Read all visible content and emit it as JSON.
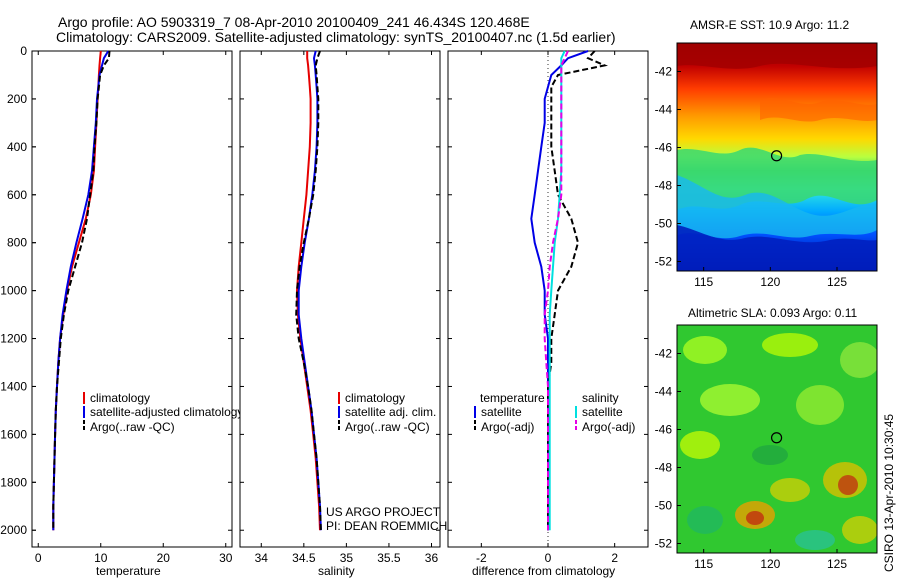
{
  "header": {
    "title_line1": "Argo profile: AO 5903319_7 08-Apr-2010 20100409_241 46.434S 120.468E",
    "title_line2": "Climatology: CARS2009. Satellite-adjusted climatology: synTS_20100407.nc (1.5d earlier)"
  },
  "credits": {
    "project": "US ARGO PROJECT",
    "pi": "PI: DEAN ROEMMICH",
    "stamp": "CSIRO 13-Apr-2010 10:30:45"
  },
  "colors": {
    "climatology": "#e60000",
    "satellite": "#0000e6",
    "argo": "#000000",
    "salinity_sat": "#00e0e0",
    "salinity_argo": "#e600e6"
  },
  "chart_data": [
    {
      "type": "line",
      "id": "temperature",
      "xlabel": "temperature",
      "xlim": [
        -1,
        31
      ],
      "ylim": [
        2070,
        0
      ],
      "yticks": [
        0,
        200,
        400,
        600,
        800,
        1000,
        1200,
        1400,
        1600,
        1800,
        2000
      ],
      "xticks": [
        0,
        10,
        20,
        30
      ],
      "xtick_labels": [
        "0",
        "10",
        "20",
        "30"
      ],
      "ytick_labels": [
        "0",
        "200",
        "400",
        "600",
        "800",
        "1000",
        "1200",
        "1400",
        "1600",
        "1800",
        "2000"
      ],
      "legend": [
        "climatology",
        "satellite-adjusted climatology",
        "Argo(..raw -QC)"
      ],
      "depth": [
        0,
        30,
        60,
        100,
        150,
        200,
        300,
        400,
        500,
        600,
        700,
        800,
        900,
        1000,
        1100,
        1200,
        1300,
        1400,
        1500,
        1600,
        1700,
        1800,
        1900,
        2000
      ],
      "series": [
        {
          "name": "climatology",
          "style": "solid",
          "values": [
            10.0,
            9.9,
            9.8,
            9.7,
            9.6,
            9.5,
            9.3,
            9.1,
            8.9,
            8.4,
            7.6,
            6.5,
            5.4,
            4.6,
            4.0,
            3.5,
            3.2,
            3.0,
            2.8,
            2.7,
            2.6,
            2.5,
            2.4,
            2.4
          ]
        },
        {
          "name": "satellite-adjusted climatology",
          "style": "solid",
          "values": [
            11.2,
            10.5,
            10.2,
            9.8,
            9.6,
            9.4,
            9.2,
            8.9,
            8.6,
            8.0,
            7.1,
            6.1,
            5.2,
            4.5,
            3.9,
            3.5,
            3.2,
            3.0,
            2.8,
            2.7,
            2.6,
            2.5,
            2.4,
            2.4
          ]
        },
        {
          "name": "Argo(..raw -QC)",
          "style": "dashed",
          "values": [
            11.4,
            11.3,
            10.5,
            9.9,
            9.7,
            9.5,
            9.3,
            9.0,
            8.8,
            8.3,
            7.8,
            7.0,
            5.9,
            4.8,
            4.1,
            3.6,
            3.3,
            3.0,
            2.8,
            2.7,
            2.6,
            2.5,
            2.4,
            2.4
          ]
        }
      ]
    },
    {
      "type": "line",
      "id": "salinity",
      "xlabel": "salinity",
      "xlim": [
        33.75,
        36.1
      ],
      "ylim": [
        2070,
        0
      ],
      "xticks": [
        34,
        34.5,
        35,
        35.5,
        36
      ],
      "xtick_labels": [
        "34",
        "34.5",
        "35",
        "35.5",
        "36"
      ],
      "legend": [
        "climatology",
        "satellite adj. clim.",
        "Argo(..raw -QC)"
      ],
      "depth": [
        0,
        30,
        60,
        100,
        150,
        200,
        300,
        400,
        500,
        600,
        700,
        800,
        900,
        1000,
        1100,
        1200,
        1300,
        1400,
        1500,
        1600,
        1700,
        1800,
        1900,
        2000
      ],
      "series": [
        {
          "name": "climatology",
          "style": "solid",
          "values": [
            34.54,
            34.54,
            34.55,
            34.56,
            34.57,
            34.58,
            34.58,
            34.57,
            34.55,
            34.53,
            34.5,
            34.47,
            34.44,
            34.42,
            34.43,
            34.46,
            34.5,
            34.54,
            34.58,
            34.61,
            34.64,
            34.66,
            34.68,
            34.69
          ]
        },
        {
          "name": "satellite adj. clim.",
          "style": "solid",
          "values": [
            34.64,
            34.62,
            34.63,
            34.64,
            34.65,
            34.66,
            34.66,
            34.65,
            34.63,
            34.6,
            34.56,
            34.51,
            34.47,
            34.44,
            34.44,
            34.47,
            34.51,
            34.55,
            34.59,
            34.62,
            34.65,
            34.67,
            34.69,
            34.7
          ]
        },
        {
          "name": "Argo(..raw -QC)",
          "style": "dashed",
          "values": [
            34.69,
            34.66,
            34.64,
            34.65,
            34.66,
            34.67,
            34.67,
            34.66,
            34.64,
            34.61,
            34.56,
            34.5,
            34.45,
            34.42,
            34.41,
            34.44,
            34.5,
            34.55,
            34.59,
            34.62,
            34.65,
            34.67,
            34.69,
            34.7
          ]
        }
      ]
    },
    {
      "type": "line",
      "id": "difference",
      "xlabel": "difference from climatology",
      "xlim": [
        -3,
        3
      ],
      "ylim": [
        2070,
        0
      ],
      "xticks": [
        -2,
        0,
        2
      ],
      "xtick_labels": [
        "-2",
        "0",
        "2"
      ],
      "legend_temperature": {
        "title": "temperature",
        "items": [
          "satellite",
          "Argo(-adj)"
        ]
      },
      "legend_salinity": {
        "title": "salinity",
        "items": [
          "satellite",
          "Argo(-adj)"
        ]
      },
      "depth": [
        0,
        30,
        60,
        100,
        150,
        200,
        300,
        400,
        500,
        600,
        700,
        800,
        900,
        1000,
        1100,
        1200,
        1300,
        1400,
        1500,
        1600,
        1700,
        1800,
        1900,
        2000
      ],
      "series": [
        {
          "name": "temperature satellite",
          "style": "solid",
          "values": [
            1.2,
            0.6,
            0.4,
            0.1,
            0.0,
            -0.1,
            -0.1,
            -0.2,
            -0.3,
            -0.4,
            -0.5,
            -0.4,
            -0.2,
            -0.1,
            -0.1,
            0.0,
            0.0,
            0.0,
            0.0,
            0.0,
            0.0,
            0.0,
            0.0,
            0.0
          ]
        },
        {
          "name": "temperature Argo(-adj)",
          "style": "dashed",
          "values": [
            1.4,
            1.2,
            1.7,
            0.3,
            0.1,
            0.1,
            0.1,
            0.1,
            0.2,
            0.3,
            0.7,
            0.9,
            0.7,
            0.3,
            0.2,
            0.1,
            0.1,
            0.0,
            0.0,
            0.0,
            0.0,
            0.0,
            0.0,
            0.0
          ]
        },
        {
          "name": "salinity satellite",
          "style": "solid",
          "values": [
            0.5,
            0.4,
            0.4,
            0.4,
            0.4,
            0.4,
            0.4,
            0.4,
            0.4,
            0.35,
            0.3,
            0.2,
            0.15,
            0.1,
            0.05,
            0.05,
            0.05,
            0.05,
            0.05,
            0.05,
            0.05,
            0.05,
            0.05,
            0.05
          ]
        },
        {
          "name": "salinity Argo(-adj)",
          "style": "dashed",
          "values": [
            0.6,
            0.5,
            0.4,
            0.4,
            0.4,
            0.4,
            0.4,
            0.4,
            0.4,
            0.4,
            0.3,
            0.15,
            0.05,
            -0.0,
            -0.1,
            -0.1,
            -0.05,
            0.0,
            0.0,
            0.0,
            0.0,
            0.0,
            0.0,
            0.0
          ]
        }
      ]
    },
    {
      "type": "heatmap",
      "id": "sst-map",
      "title": "AMSR-E SST: 10.9 Argo: 11.2",
      "xlim": [
        113,
        128
      ],
      "ylim": [
        -52.5,
        -40.5
      ],
      "xticks": [
        115,
        120,
        125
      ],
      "yticks": [
        -42,
        -44,
        -46,
        -48,
        -50,
        -52
      ],
      "xtick_labels": [
        "115",
        "120",
        "125"
      ],
      "ytick_labels": [
        "-42",
        "-44",
        "-46",
        "-48",
        "-50",
        "-52"
      ],
      "marker": {
        "x": 120.468,
        "y": -46.434
      }
    },
    {
      "type": "heatmap",
      "id": "sla-map",
      "title": "Altimetric SLA: 0.093 Argo: 0.11",
      "xlim": [
        113,
        128
      ],
      "ylim": [
        -52.5,
        -40.5
      ],
      "xticks": [
        115,
        120,
        125
      ],
      "yticks": [
        -42,
        -44,
        -46,
        -48,
        -50,
        -52
      ],
      "xtick_labels": [
        "115",
        "120",
        "125"
      ],
      "ytick_labels": [
        "-42",
        "-44",
        "-46",
        "-48",
        "-50",
        "-52"
      ],
      "marker": {
        "x": 120.468,
        "y": -46.434
      }
    }
  ]
}
